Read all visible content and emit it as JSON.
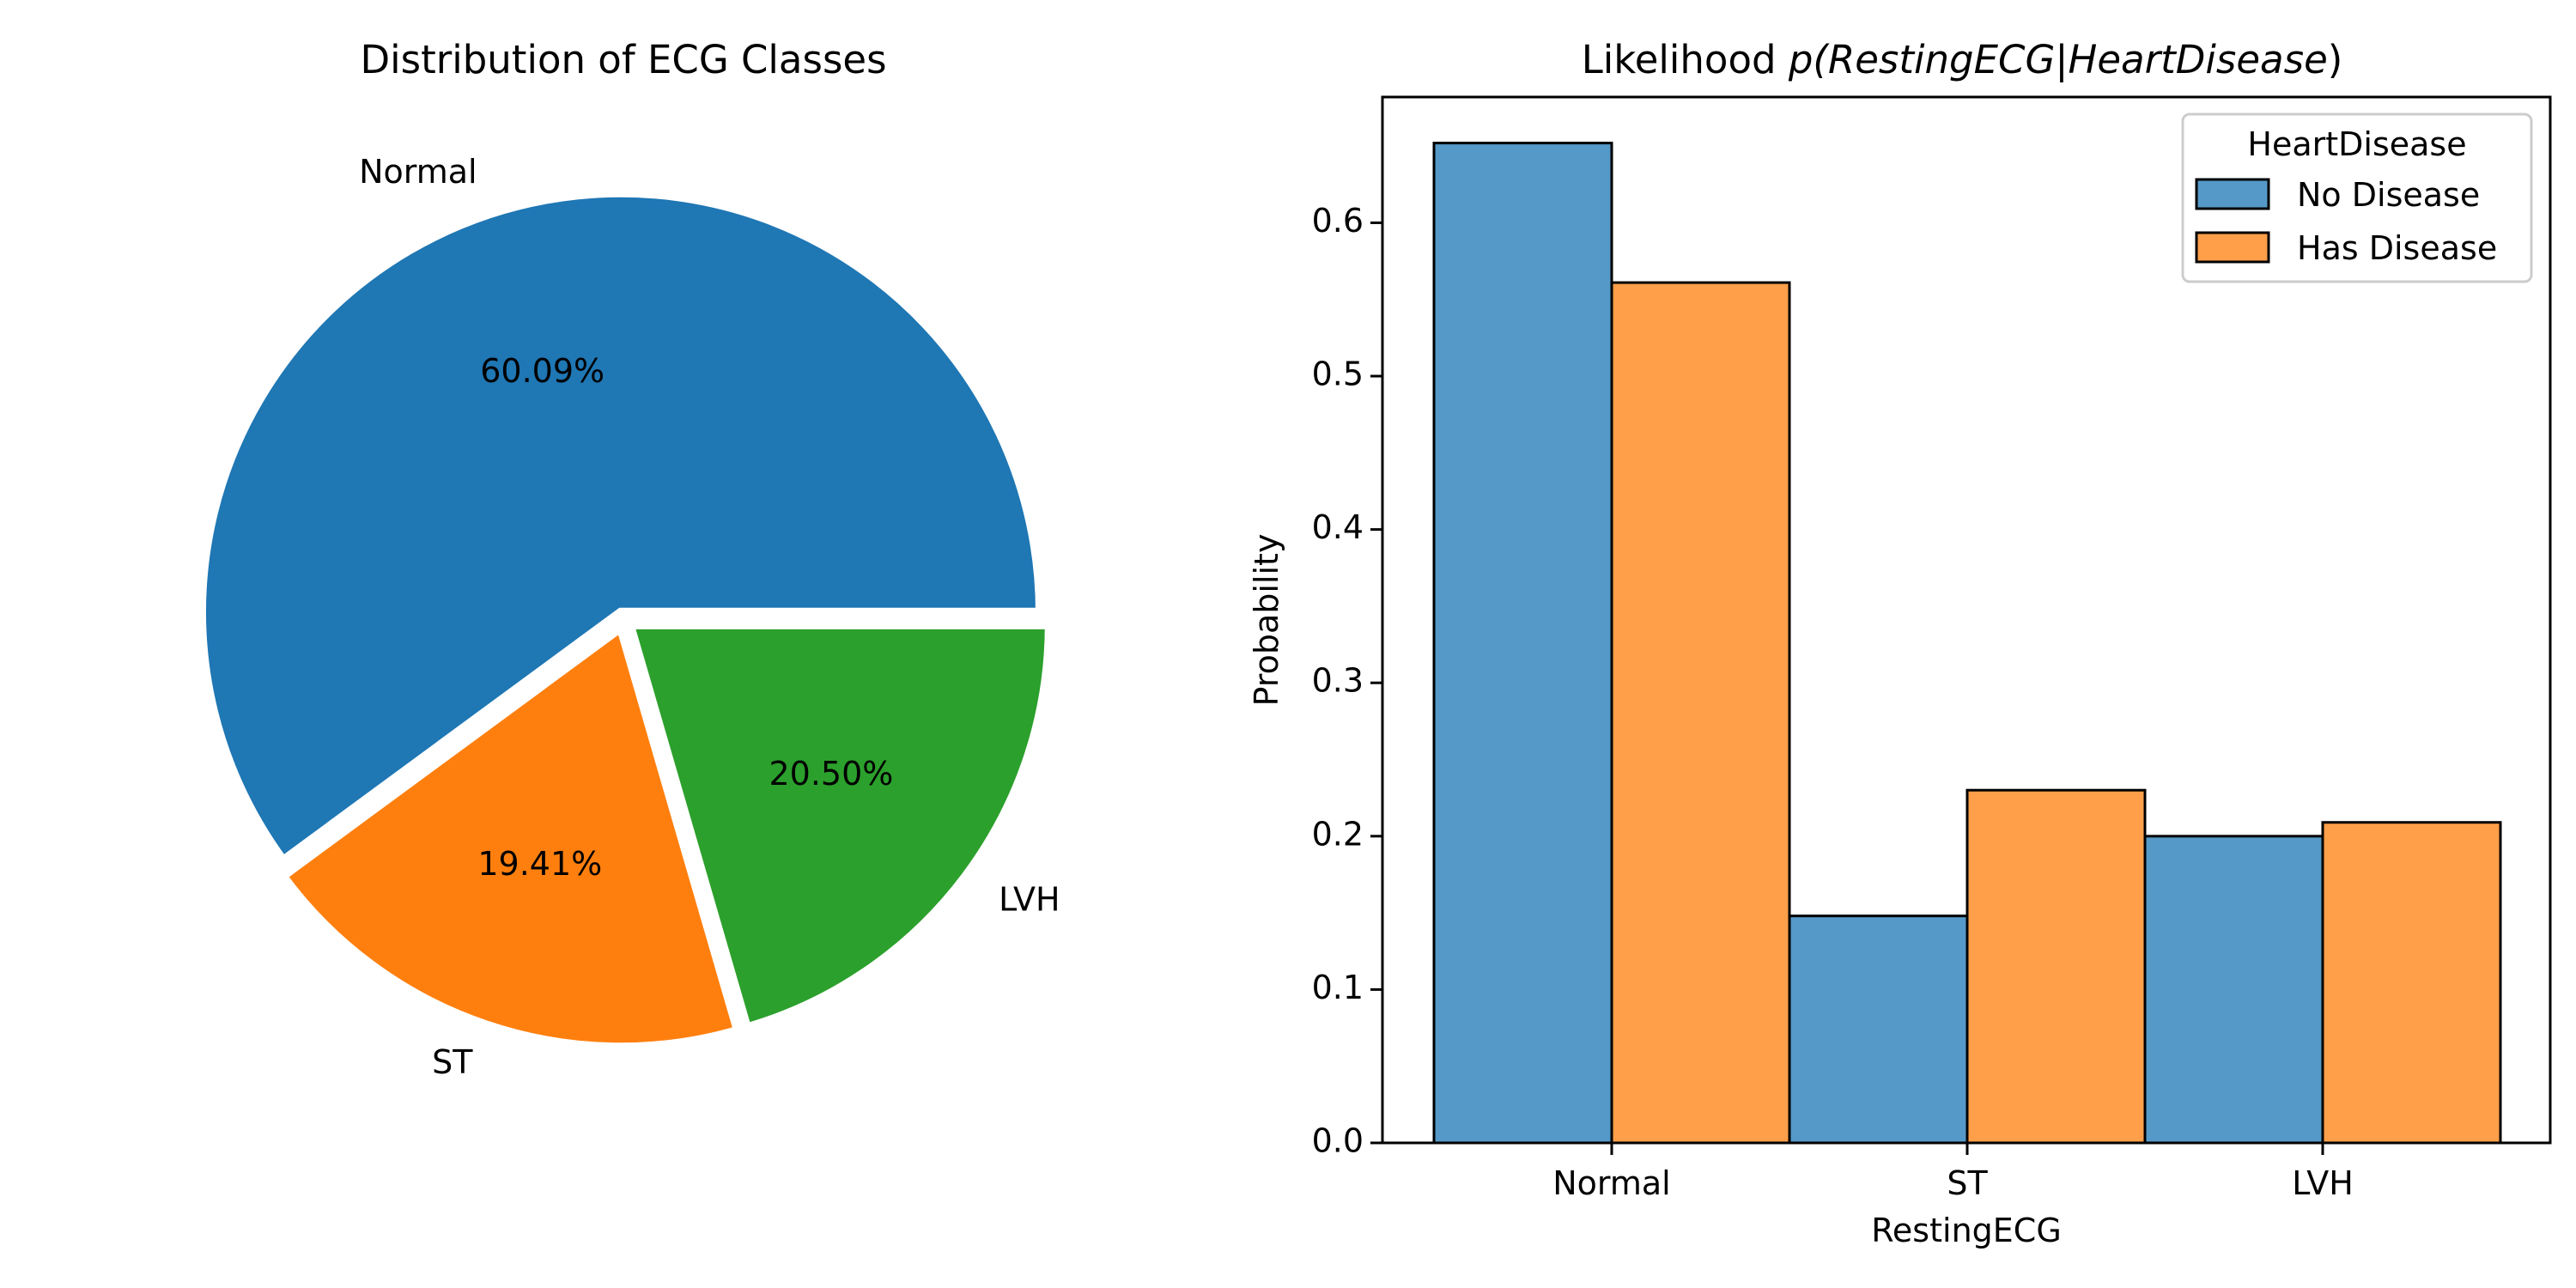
{
  "chart_data": [
    {
      "type": "pie",
      "title": "Distribution of ECG Classes",
      "slices": [
        {
          "label": "Normal",
          "pct_label": "60.09%",
          "value": 60.09,
          "color": "#1f77b4"
        },
        {
          "label": "ST",
          "pct_label": "19.41%",
          "value": 19.41,
          "color": "#ff7f0e"
        },
        {
          "label": "LVH",
          "pct_label": "20.50%",
          "value": 20.5,
          "color": "#2ca02c"
        }
      ],
      "slice_edge_color": "#ffffff"
    },
    {
      "type": "bar",
      "title_prefix": "Likelihood ",
      "title_math": [
        "p(",
        "RestingECG",
        "|",
        "HeartDisease",
        ")"
      ],
      "xlabel": "RestingECG",
      "ylabel": "Probability",
      "categories": [
        "Normal",
        "ST",
        "LVH"
      ],
      "yticks": [
        "0.0",
        "0.1",
        "0.2",
        "0.3",
        "0.4",
        "0.5",
        "0.6"
      ],
      "ylim": [
        0,
        0.682
      ],
      "legend": {
        "title": "HeartDisease",
        "placement": "top-right"
      },
      "series": [
        {
          "name": "No Disease",
          "values": [
            0.652,
            0.148,
            0.2
          ],
          "color": "#5499c7"
        },
        {
          "name": "Has Disease",
          "values": [
            0.561,
            0.23,
            0.209
          ],
          "color": "#ff9f4a"
        }
      ]
    }
  ]
}
